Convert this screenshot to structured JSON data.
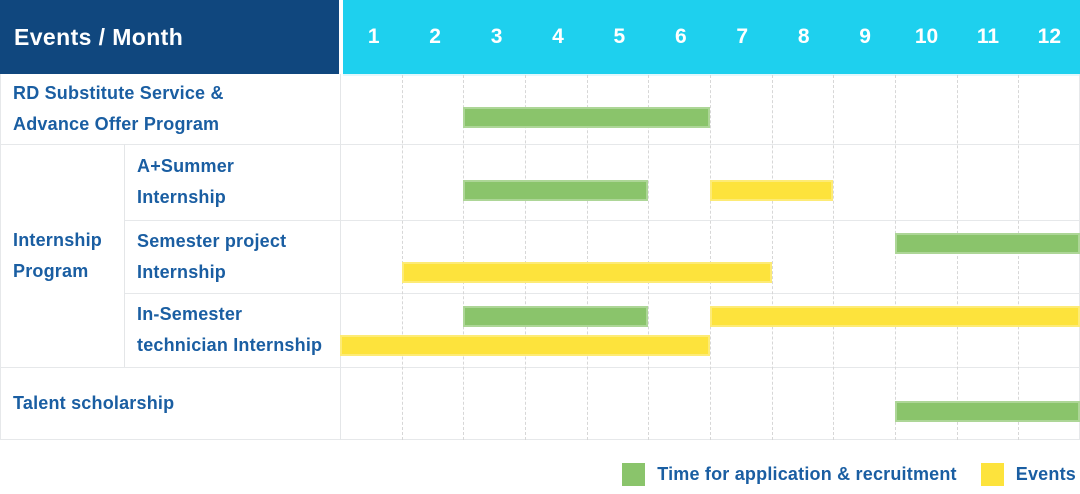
{
  "header": {
    "title": "Events / Month",
    "months": [
      "1",
      "2",
      "3",
      "4",
      "5",
      "6",
      "7",
      "8",
      "9",
      "10",
      "11",
      "12"
    ]
  },
  "colors": {
    "header_bg": "#10477E",
    "month_bg": "#1ED0EE",
    "recruitment": "#8AC46B",
    "event": "#FDE33C",
    "label_text": "#1A5EA2"
  },
  "legend": [
    {
      "kind": "recruitment",
      "label": "Time for application & recruitment"
    },
    {
      "kind": "event",
      "label": "Events"
    }
  ],
  "chart_data": {
    "type": "gantt",
    "x_axis": {
      "label": "Month",
      "ticks": [
        1,
        2,
        3,
        4,
        5,
        6,
        7,
        8,
        9,
        10,
        11,
        12
      ],
      "range": [
        1,
        12
      ]
    },
    "bar_kinds": {
      "recruitment": "Time for application & recruitment",
      "event": "Events"
    },
    "group": {
      "label": "Internship Program",
      "label_lines": [
        "Internship",
        "Program"
      ],
      "row_indexes": [
        1,
        2,
        3
      ]
    },
    "rows": [
      {
        "label": "RD Substitute Service & Advance Offer Program",
        "label_lines": [
          "RD Substitute Service &",
          "Advance Offer Program"
        ],
        "bars": [
          {
            "kind": "recruitment",
            "start": 3,
            "end": 6,
            "band": "single"
          }
        ]
      },
      {
        "label": "A+Summer Internship",
        "label_lines": [
          "A+Summer",
          "Internship"
        ],
        "bars": [
          {
            "kind": "recruitment",
            "start": 3,
            "end": 5,
            "band": "single"
          },
          {
            "kind": "event",
            "start": 7,
            "end": 8,
            "band": "single"
          }
        ]
      },
      {
        "label": "Semester project Internship",
        "label_lines": [
          "Semester project",
          "Internship"
        ],
        "bars": [
          {
            "kind": "recruitment",
            "start": 10,
            "end": 12,
            "band": "top"
          },
          {
            "kind": "event",
            "start": 2,
            "end": 7,
            "band": "bottom"
          }
        ]
      },
      {
        "label": "In-Semester technician Internship",
        "label_lines": [
          "In-Semester",
          "technician Internship"
        ],
        "bars": [
          {
            "kind": "recruitment",
            "start": 3,
            "end": 5,
            "band": "top"
          },
          {
            "kind": "event",
            "start": 7,
            "end": 12,
            "band": "top"
          },
          {
            "kind": "event",
            "start": 1,
            "end": 6,
            "band": "bottom"
          }
        ]
      },
      {
        "label": "Talent scholarship",
        "label_lines": [
          "Talent scholarship"
        ],
        "bars": [
          {
            "kind": "recruitment",
            "start": 10,
            "end": 12,
            "band": "single"
          }
        ]
      }
    ]
  }
}
